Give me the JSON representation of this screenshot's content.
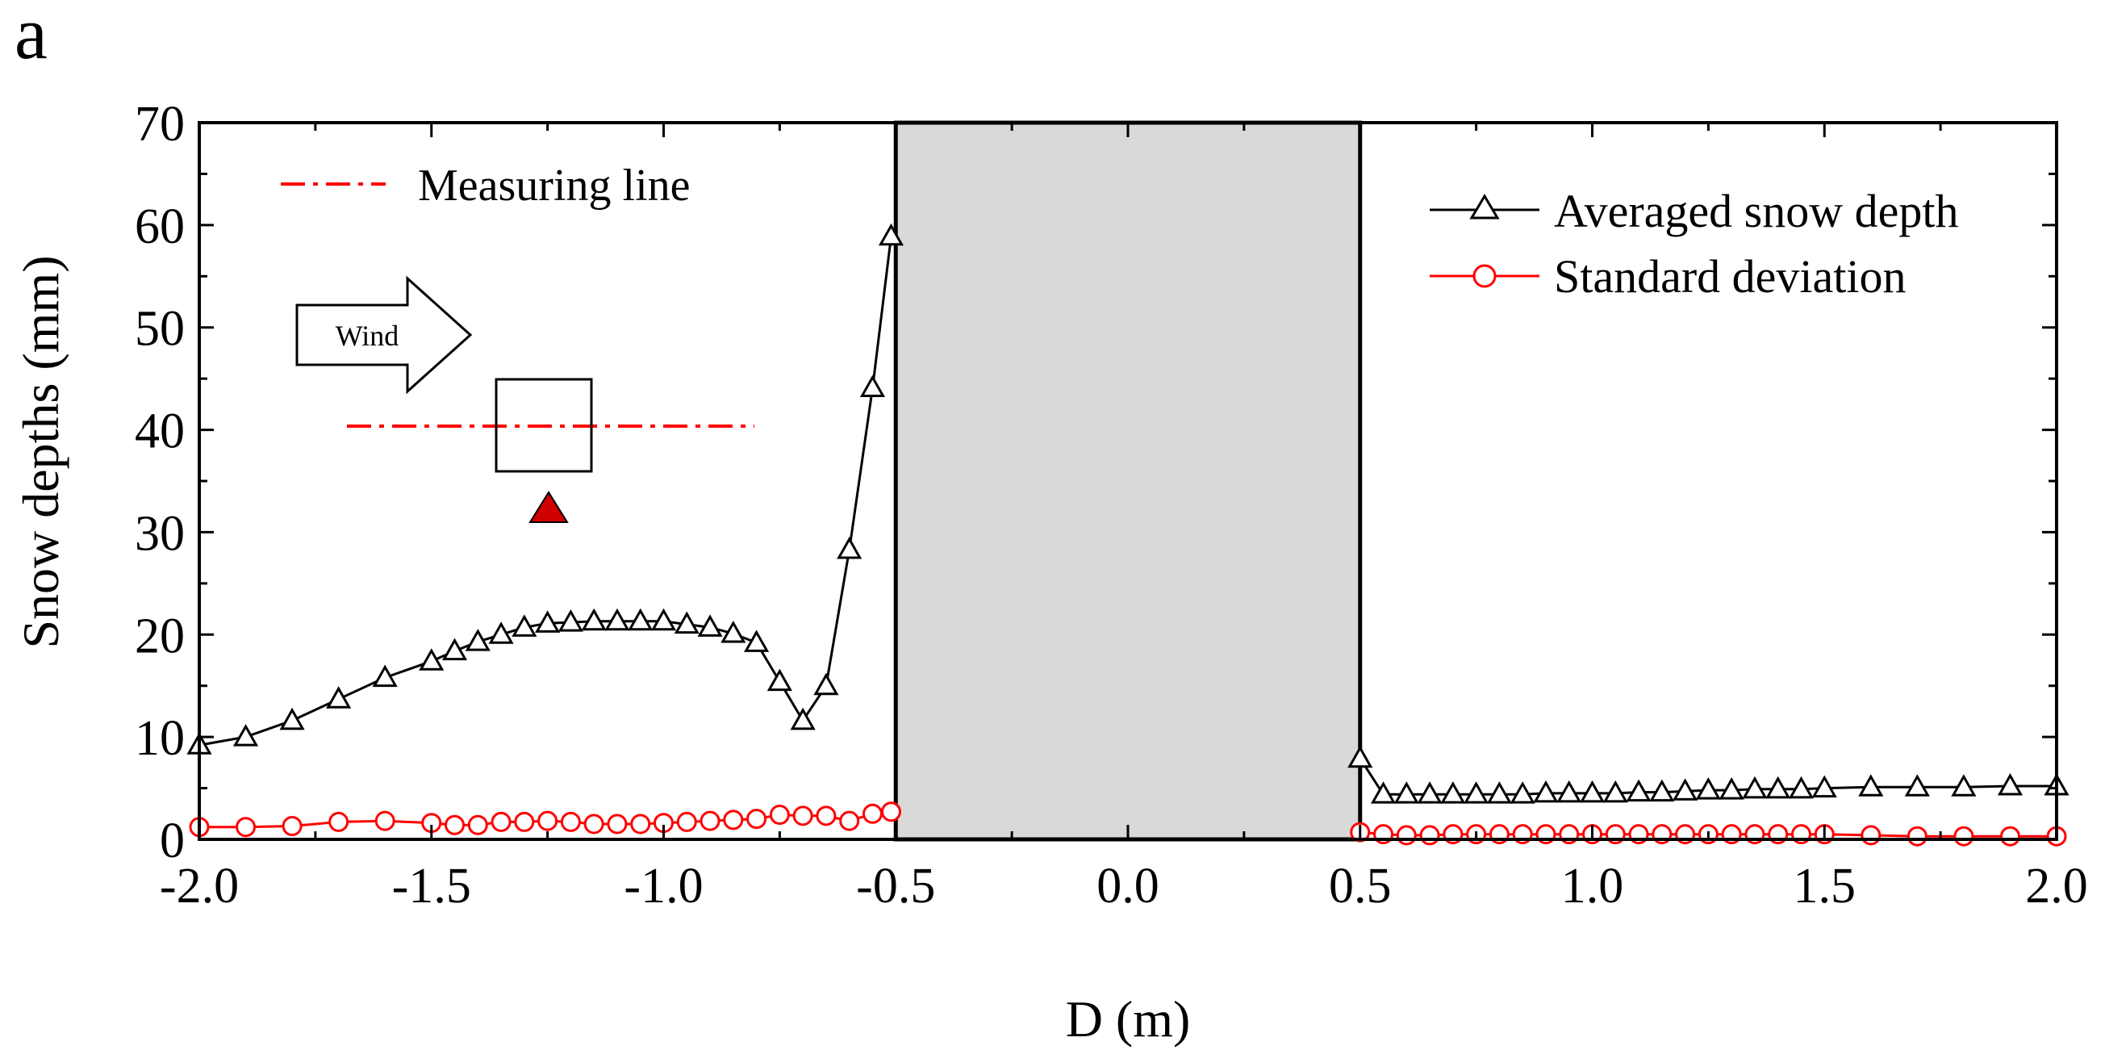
{
  "chart_data": {
    "panel_label": "a",
    "type": "line",
    "xlabel": "D (m)",
    "ylabel": "Snow depths (mm)",
    "xlim": [
      -2.0,
      2.0
    ],
    "ylim": [
      0,
      70
    ],
    "x_ticks": [
      "-2.0",
      "-1.5",
      "-1.0",
      "-0.5",
      "0.0",
      "0.5",
      "1.0",
      "1.5",
      "2.0"
    ],
    "y_ticks": [
      "0",
      "10",
      "20",
      "30",
      "40",
      "50",
      "60",
      "70"
    ],
    "obstacle_region": [
      -0.5,
      0.5
    ],
    "series": [
      {
        "name": "Averaged snow depth",
        "marker": "triangle",
        "color": "#000000",
        "points": [
          [
            -2.0,
            9.2
          ],
          [
            -1.9,
            10.0
          ],
          [
            -1.8,
            11.6
          ],
          [
            -1.7,
            13.7
          ],
          [
            -1.6,
            15.8
          ],
          [
            -1.5,
            17.4
          ],
          [
            -1.45,
            18.4
          ],
          [
            -1.4,
            19.3
          ],
          [
            -1.35,
            20.0
          ],
          [
            -1.3,
            20.7
          ],
          [
            -1.25,
            21.1
          ],
          [
            -1.2,
            21.2
          ],
          [
            -1.15,
            21.3
          ],
          [
            -1.1,
            21.3
          ],
          [
            -1.05,
            21.3
          ],
          [
            -1.0,
            21.3
          ],
          [
            -0.95,
            21.0
          ],
          [
            -0.9,
            20.7
          ],
          [
            -0.85,
            20.1
          ],
          [
            -0.8,
            19.2
          ],
          [
            -0.75,
            15.4
          ],
          [
            -0.7,
            11.6
          ],
          [
            -0.65,
            15.0
          ],
          [
            -0.6,
            28.3
          ],
          [
            -0.55,
            44.1
          ],
          [
            -0.51,
            58.9
          ],
          [
            0.5,
            7.9
          ],
          [
            0.55,
            4.4
          ],
          [
            0.6,
            4.4
          ],
          [
            0.65,
            4.4
          ],
          [
            0.7,
            4.4
          ],
          [
            0.75,
            4.4
          ],
          [
            0.8,
            4.4
          ],
          [
            0.85,
            4.4
          ],
          [
            0.9,
            4.5
          ],
          [
            0.95,
            4.5
          ],
          [
            1.0,
            4.5
          ],
          [
            1.05,
            4.5
          ],
          [
            1.1,
            4.6
          ],
          [
            1.15,
            4.6
          ],
          [
            1.2,
            4.7
          ],
          [
            1.25,
            4.8
          ],
          [
            1.3,
            4.8
          ],
          [
            1.35,
            4.9
          ],
          [
            1.4,
            4.9
          ],
          [
            1.45,
            4.9
          ],
          [
            1.5,
            5.0
          ],
          [
            1.6,
            5.1
          ],
          [
            1.7,
            5.1
          ],
          [
            1.8,
            5.1
          ],
          [
            1.9,
            5.2
          ],
          [
            2.0,
            5.2
          ]
        ]
      },
      {
        "name": "Standard deviation",
        "marker": "circle",
        "color": "#ff0000",
        "points": [
          [
            -2.0,
            1.2
          ],
          [
            -1.9,
            1.2
          ],
          [
            -1.8,
            1.3
          ],
          [
            -1.7,
            1.7
          ],
          [
            -1.6,
            1.8
          ],
          [
            -1.5,
            1.6
          ],
          [
            -1.45,
            1.4
          ],
          [
            -1.4,
            1.4
          ],
          [
            -1.35,
            1.7
          ],
          [
            -1.3,
            1.7
          ],
          [
            -1.25,
            1.8
          ],
          [
            -1.2,
            1.7
          ],
          [
            -1.15,
            1.5
          ],
          [
            -1.1,
            1.5
          ],
          [
            -1.05,
            1.5
          ],
          [
            -1.0,
            1.6
          ],
          [
            -0.95,
            1.7
          ],
          [
            -0.9,
            1.8
          ],
          [
            -0.85,
            1.9
          ],
          [
            -0.8,
            2.0
          ],
          [
            -0.75,
            2.4
          ],
          [
            -0.7,
            2.3
          ],
          [
            -0.65,
            2.3
          ],
          [
            -0.6,
            1.8
          ],
          [
            -0.55,
            2.5
          ],
          [
            -0.51,
            2.7
          ],
          [
            0.5,
            0.7
          ],
          [
            0.55,
            0.5
          ],
          [
            0.6,
            0.4
          ],
          [
            0.65,
            0.4
          ],
          [
            0.7,
            0.5
          ],
          [
            0.75,
            0.5
          ],
          [
            0.8,
            0.5
          ],
          [
            0.85,
            0.5
          ],
          [
            0.9,
            0.5
          ],
          [
            0.95,
            0.5
          ],
          [
            1.0,
            0.5
          ],
          [
            1.05,
            0.5
          ],
          [
            1.1,
            0.5
          ],
          [
            1.15,
            0.5
          ],
          [
            1.2,
            0.5
          ],
          [
            1.25,
            0.5
          ],
          [
            1.3,
            0.5
          ],
          [
            1.35,
            0.5
          ],
          [
            1.4,
            0.5
          ],
          [
            1.45,
            0.5
          ],
          [
            1.5,
            0.5
          ],
          [
            1.6,
            0.4
          ],
          [
            1.7,
            0.3
          ],
          [
            1.8,
            0.3
          ],
          [
            1.9,
            0.3
          ],
          [
            2.0,
            0.3
          ]
        ]
      }
    ],
    "legend": {
      "placement": "top-right",
      "entries": [
        "Averaged snow depth",
        "Standard deviation"
      ]
    },
    "inset": {
      "measuring_line_label": "Measuring line",
      "wind_label": "Wind"
    }
  }
}
